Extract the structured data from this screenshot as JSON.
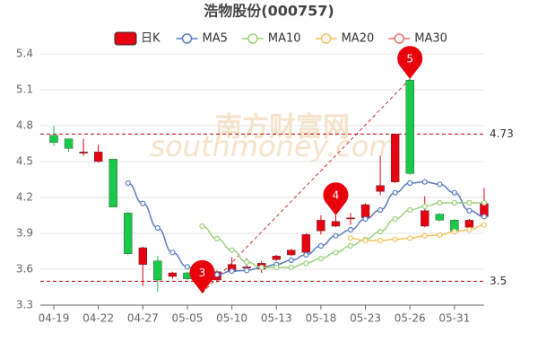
{
  "chart_data": {
    "type": "candlestick",
    "title": "浩物股份(000757)",
    "watermark": [
      "南方财富网",
      "southmoney.com"
    ],
    "categories": [
      "04-19",
      null,
      null,
      "04-22",
      null,
      null,
      "04-27",
      null,
      null,
      "05-05",
      null,
      null,
      "05-10",
      null,
      null,
      "05-13",
      null,
      null,
      "05-18",
      null,
      null,
      "05-23",
      null,
      null,
      "05-26",
      null,
      null,
      "05-31",
      null,
      null
    ],
    "candles": {
      "name": "日K",
      "up_color": "#e60012",
      "down_color": "#19c94a",
      "open": [
        4.72,
        4.69,
        4.57,
        4.5,
        4.52,
        4.07,
        3.64,
        3.67,
        3.54,
        3.57,
        3.5,
        3.51,
        3.58,
        3.61,
        3.6,
        3.68,
        3.72,
        3.74,
        3.92,
        3.96,
        4.02,
        4.03,
        4.25,
        4.33,
        5.18,
        3.96,
        4.06,
        4.01,
        3.95,
        4.04
      ],
      "close": [
        4.66,
        4.61,
        4.58,
        4.58,
        4.12,
        3.73,
        3.78,
        3.51,
        3.57,
        3.52,
        3.45,
        3.58,
        3.64,
        3.62,
        3.65,
        3.71,
        3.76,
        3.89,
        4.01,
        4.0,
        4.03,
        4.14,
        4.3,
        4.73,
        4.4,
        4.09,
        4.01,
        3.92,
        4.01,
        4.15
      ],
      "high": [
        4.8,
        4.69,
        4.69,
        4.64,
        4.52,
        4.08,
        3.79,
        3.71,
        3.58,
        3.58,
        3.51,
        3.59,
        3.7,
        3.69,
        3.67,
        3.72,
        3.77,
        3.9,
        4.05,
        4.05,
        4.07,
        4.15,
        4.55,
        4.73,
        5.19,
        4.21,
        4.07,
        4.02,
        4.02,
        4.28
      ],
      "low": [
        4.63,
        4.58,
        4.55,
        4.49,
        4.12,
        3.72,
        3.46,
        3.41,
        3.52,
        3.51,
        3.4,
        3.49,
        3.57,
        3.57,
        3.57,
        3.67,
        3.71,
        3.74,
        3.89,
        3.95,
        3.97,
        4.02,
        4.22,
        4.32,
        4.39,
        3.95,
        4.0,
        3.89,
        3.94,
        4.03
      ]
    },
    "series": [
      {
        "name": "MA5",
        "color": "#5b7bc4",
        "values": [
          null,
          null,
          null,
          null,
          null,
          4.32,
          4.15,
          3.945,
          3.74,
          3.62,
          3.56,
          3.555,
          3.585,
          3.59,
          3.615,
          3.64,
          3.675,
          3.72,
          3.795,
          3.88,
          3.93,
          4.02,
          4.095,
          4.24,
          4.32,
          4.33,
          4.31,
          4.24,
          4.09,
          4.04
        ]
      },
      {
        "name": "MA10",
        "color": "#9bd07a",
        "values": [
          null,
          null,
          null,
          null,
          null,
          null,
          null,
          null,
          null,
          null,
          3.96,
          3.855,
          3.76,
          3.66,
          3.615,
          3.615,
          3.615,
          3.65,
          3.69,
          3.74,
          3.795,
          3.85,
          3.915,
          4.02,
          4.095,
          4.125,
          4.155,
          4.155,
          4.155,
          4.155
        ]
      },
      {
        "name": "MA20",
        "color": "#f5c35a",
        "values": [
          null,
          null,
          null,
          null,
          null,
          null,
          null,
          null,
          null,
          null,
          null,
          null,
          null,
          null,
          null,
          null,
          null,
          null,
          null,
          null,
          3.86,
          3.84,
          3.84,
          3.85,
          3.86,
          3.88,
          3.885,
          3.915,
          3.93,
          3.97
        ]
      },
      {
        "name": "MA30",
        "color": "#ef6f6f",
        "values": [
          null,
          null,
          null,
          null,
          null,
          null,
          null,
          null,
          null,
          null,
          null,
          null,
          null,
          null,
          null,
          null,
          null,
          null,
          null,
          null,
          null,
          null,
          null,
          null,
          null,
          null,
          null,
          null,
          null,
          null
        ]
      }
    ],
    "hlines": [
      4.73,
      3.5
    ],
    "hline_color": "#c00000",
    "annotations": [
      {
        "label": "3",
        "index": 10,
        "value": 3.4
      },
      {
        "label": "4",
        "index": 19,
        "value": 4.05
      },
      {
        "label": "5",
        "index": 24,
        "value": 5.19
      }
    ],
    "annotation_color": "#e8000b",
    "ylim": [
      3.3,
      5.4
    ],
    "yticks": [
      3.3,
      3.6,
      3.9,
      4.2,
      4.5,
      4.8,
      5.1,
      5.4
    ],
    "grid": true
  }
}
